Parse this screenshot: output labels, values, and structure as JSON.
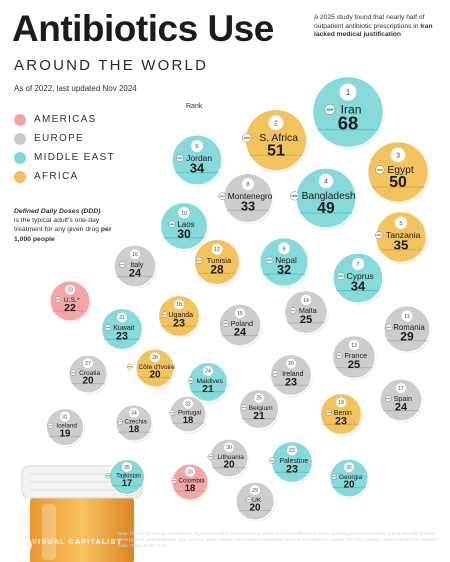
{
  "header": {
    "title": "Antibiotics Use",
    "subtitle": "AROUND THE WORLD",
    "updated": "As of 2022, last updated Nov 2024",
    "note_part1": "A 2025 study found that nearly half of outpatient antibiotic prescriptions in ",
    "note_bold": "Iran lacked medical justification"
  },
  "legend": [
    {
      "label": "AMERICAS",
      "color": "#f4a6a6"
    },
    {
      "label": "EUROPE",
      "color": "#c9c9c9"
    },
    {
      "label": "MIDDLE EAST",
      "color": "#7fd8d8"
    },
    {
      "label": "AFRICA",
      "color": "#f2c15a"
    }
  ],
  "definition": {
    "heading": "Defined Daily Doses (DDD)",
    "text": "is the typical adult's one-day treatment for any given drug ",
    "bold": "per 1,000 people"
  },
  "rank_label": "Rank",
  "footer": "Note: shown for the top 35 countries. Figures rounded. Countries may report data from different sources, including insurance claims, import records, hospital prescriptions, and wholesale data. Source: WHO Global Antimicrobial Resistance and Use Surveillance System (GLASS) (2024) – processed by Our World in Data. *See Health Trust.",
  "brand": "VISUAL CAPITALIST",
  "chart_data": {
    "type": "bubble",
    "title": "Antibiotics Use",
    "subtitle": "AROUND THE WORLD",
    "value_label": "DDD per 1,000 people",
    "regions": {
      "Americas": "#f4a6a6",
      "Europe": "#c9c9c9",
      "Middle East": "#7fd8d8",
      "Africa": "#f2c15a"
    },
    "points": [
      {
        "rank": "1",
        "country": "Iran",
        "value": "68",
        "region": "Middle East"
      },
      {
        "rank": "2",
        "country": "S. Africa",
        "value": "51",
        "region": "Africa"
      },
      {
        "rank": "3",
        "country": "Egypt",
        "value": "50",
        "region": "Africa"
      },
      {
        "rank": "4",
        "country": "Bangladesh",
        "value": "49",
        "region": "Middle East"
      },
      {
        "rank": "5",
        "country": "Tanzania",
        "value": "35",
        "region": "Africa"
      },
      {
        "rank": "6",
        "country": "Jordan",
        "value": "34",
        "region": "Middle East"
      },
      {
        "rank": "7",
        "country": "Cyprus",
        "value": "34",
        "region": "Middle East"
      },
      {
        "rank": "8",
        "country": "Montenegro",
        "value": "33",
        "region": "Europe"
      },
      {
        "rank": "9",
        "country": "Nepal",
        "value": "32",
        "region": "Middle East"
      },
      {
        "rank": "10",
        "country": "Laos",
        "value": "30",
        "region": "Middle East"
      },
      {
        "rank": "11",
        "country": "Romania",
        "value": "29",
        "region": "Europe"
      },
      {
        "rank": "12",
        "country": "Tunisia",
        "value": "28",
        "region": "Africa"
      },
      {
        "rank": "13",
        "country": "France",
        "value": "25",
        "region": "Europe"
      },
      {
        "rank": "14",
        "country": "Malta",
        "value": "25",
        "region": "Europe"
      },
      {
        "rank": "15",
        "country": "Poland",
        "value": "24",
        "region": "Europe"
      },
      {
        "rank": "16",
        "country": "Italy",
        "value": "24",
        "region": "Europe"
      },
      {
        "rank": "17",
        "country": "Spain",
        "value": "24",
        "region": "Europe"
      },
      {
        "rank": "18",
        "country": "Uganda",
        "value": "23",
        "region": "Africa"
      },
      {
        "rank": "19",
        "country": "Benin",
        "value": "23",
        "region": "Africa"
      },
      {
        "rank": "20",
        "country": "Ireland",
        "value": "23",
        "region": "Europe"
      },
      {
        "rank": "21",
        "country": "Kuwait",
        "value": "23",
        "region": "Middle East"
      },
      {
        "rank": "22",
        "country": "Palestine",
        "value": "23",
        "region": "Middle East"
      },
      {
        "rank": "23",
        "country": "U.S.*",
        "value": "22",
        "region": "Americas"
      },
      {
        "rank": "24",
        "country": "Maldives",
        "value": "21",
        "region": "Middle East"
      },
      {
        "rank": "25",
        "country": "Belgium",
        "value": "21",
        "region": "Europe"
      },
      {
        "rank": "26",
        "country": "Georgia",
        "value": "20",
        "region": "Middle East"
      },
      {
        "rank": "27",
        "country": "Croatia",
        "value": "20",
        "region": "Europe"
      },
      {
        "rank": "28",
        "country": "Côte d'Ivoire",
        "value": "20",
        "region": "Africa"
      },
      {
        "rank": "29",
        "country": "UK",
        "value": "20",
        "region": "Europe"
      },
      {
        "rank": "30",
        "country": "Lithuania",
        "value": "20",
        "region": "Europe"
      },
      {
        "rank": "31",
        "country": "Iceland",
        "value": "19",
        "region": "Europe"
      },
      {
        "rank": "32",
        "country": "Portugal",
        "value": "18",
        "region": "Europe"
      },
      {
        "rank": "33",
        "country": "Colombia",
        "value": "18",
        "region": "Americas"
      },
      {
        "rank": "34",
        "country": "Czechia",
        "value": "18",
        "region": "Europe"
      },
      {
        "rank": "35",
        "country": "Tajikistan",
        "value": "17",
        "region": "Middle East"
      }
    ]
  }
}
